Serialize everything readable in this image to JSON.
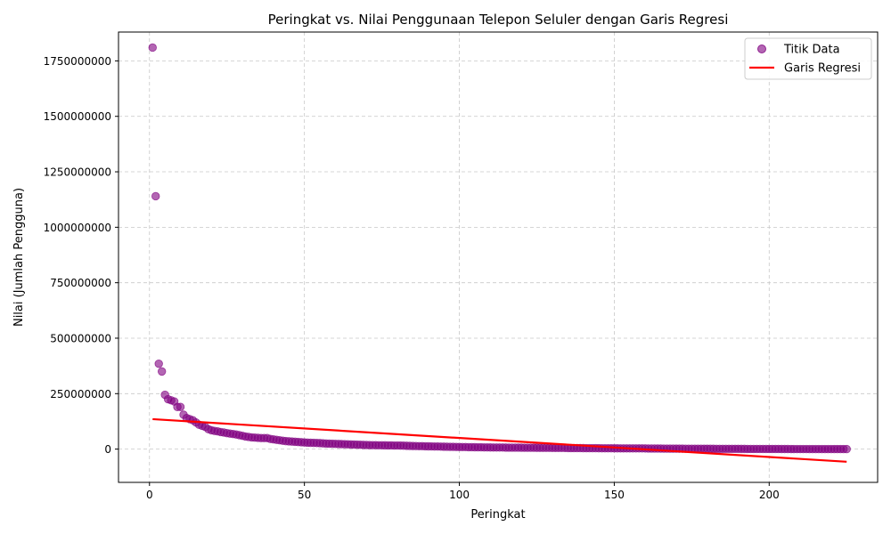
{
  "chart_data": {
    "type": "scatter",
    "title": "Peringkat vs. Nilai Penggunaan Telepon Seluler dengan Garis Regresi",
    "xlabel": "Peringkat",
    "ylabel": "Nilai (Jumlah Pengguna)",
    "xlim": [
      -10,
      235
    ],
    "ylim": [
      -150000000,
      1880000000
    ],
    "xticks": [
      0,
      50,
      100,
      150,
      200
    ],
    "yticks": [
      0,
      250000000,
      500000000,
      750000000,
      1000000000,
      1250000000,
      1500000000,
      1750000000
    ],
    "xtick_labels": [
      "0",
      "50",
      "100",
      "150",
      "200"
    ],
    "ytick_labels": [
      "0",
      "250000000",
      "500000000",
      "750000000",
      "1000000000",
      "1250000000",
      "1500000000",
      "1750000000"
    ],
    "grid": true,
    "legend_position": "top-right",
    "legend": [
      "Titik Data",
      "Garis Regresi"
    ],
    "colors": {
      "points": "#800080",
      "regression": "#ff0000",
      "grid": "#c8c8c8"
    },
    "series": [
      {
        "name": "Titik Data",
        "kind": "scatter",
        "x": [
          1,
          2,
          3,
          4,
          5,
          6,
          7,
          8,
          9,
          10,
          11,
          12,
          13,
          14,
          15,
          16,
          17,
          18,
          19,
          20,
          21,
          22,
          23,
          24,
          25,
          26,
          27,
          28,
          29,
          30,
          31,
          32,
          33,
          34,
          35,
          36,
          37,
          38,
          39,
          40,
          41,
          42,
          43,
          44,
          45,
          46,
          47,
          48,
          49,
          50,
          51,
          52,
          53,
          54,
          55,
          56,
          57,
          58,
          59,
          60,
          61,
          62,
          63,
          64,
          65,
          66,
          67,
          68,
          69,
          70,
          71,
          72,
          73,
          74,
          75,
          76,
          77,
          78,
          79,
          80,
          81,
          82,
          83,
          84,
          85,
          86,
          87,
          88,
          89,
          90,
          91,
          92,
          93,
          94,
          95,
          96,
          97,
          98,
          99,
          100,
          101,
          102,
          103,
          104,
          105,
          106,
          107,
          108,
          109,
          110,
          111,
          112,
          113,
          114,
          115,
          116,
          117,
          118,
          119,
          120,
          121,
          122,
          123,
          124,
          125,
          126,
          127,
          128,
          129,
          130,
          131,
          132,
          133,
          134,
          135,
          136,
          137,
          138,
          139,
          140,
          141,
          142,
          143,
          144,
          145,
          146,
          147,
          148,
          149,
          150,
          151,
          152,
          153,
          154,
          155,
          156,
          157,
          158,
          159,
          160,
          161,
          162,
          163,
          164,
          165,
          166,
          167,
          168,
          169,
          170,
          171,
          172,
          173,
          174,
          175,
          176,
          177,
          178,
          179,
          180,
          181,
          182,
          183,
          184,
          185,
          186,
          187,
          188,
          189,
          190,
          191,
          192,
          193,
          194,
          195,
          196,
          197,
          198,
          199,
          200,
          201,
          202,
          203,
          204,
          205,
          206,
          207,
          208,
          209,
          210,
          211,
          212,
          213,
          214,
          215,
          216,
          217,
          218,
          219,
          220,
          221,
          222,
          223,
          224,
          225
        ],
        "y": [
          1810000000,
          1140000000,
          385000000,
          350000000,
          245000000,
          225000000,
          220000000,
          215000000,
          190000000,
          190000000,
          155000000,
          140000000,
          135000000,
          130000000,
          120000000,
          110000000,
          105000000,
          100000000,
          90000000,
          85000000,
          82000000,
          80000000,
          77000000,
          75000000,
          72000000,
          70000000,
          68000000,
          66000000,
          63000000,
          60000000,
          57000000,
          55000000,
          53000000,
          52000000,
          51000000,
          50000000,
          50000000,
          50000000,
          46000000,
          44000000,
          42000000,
          40000000,
          38000000,
          36000000,
          35000000,
          34000000,
          33000000,
          32000000,
          31000000,
          30000000,
          29000000,
          28500000,
          28000000,
          27500000,
          27000000,
          26000000,
          25000000,
          24500000,
          24000000,
          23500000,
          23000000,
          22500000,
          22000000,
          21500000,
          21000000,
          20500000,
          20000000,
          19500000,
          19000000,
          18500000,
          18000000,
          17800000,
          17600000,
          17400000,
          17200000,
          17000000,
          16800000,
          16600000,
          16400000,
          16200000,
          16000000,
          15500000,
          15000000,
          14500000,
          14000000,
          13700000,
          13400000,
          13100000,
          12800000,
          12500000,
          12200000,
          11900000,
          11600000,
          11300000,
          11000000,
          10700000,
          10400000,
          10100000,
          9800000,
          9500000,
          9300000,
          9100000,
          8900000,
          8700000,
          8500000,
          8300000,
          8100000,
          7900000,
          7700000,
          7500000,
          7400000,
          7300000,
          7200000,
          7100000,
          7000000,
          6900000,
          6800000,
          6700000,
          6600000,
          6500000,
          6400000,
          6300000,
          6200000,
          6100000,
          6000000,
          5900000,
          5800000,
          5700000,
          5600000,
          5500000,
          5400000,
          5300000,
          5200000,
          5100000,
          5000000,
          4900000,
          4800000,
          4700000,
          4600000,
          4500000,
          4400000,
          4300000,
          4200000,
          4100000,
          4000000,
          3900000,
          3800000,
          3700000,
          3600000,
          3500000,
          3450000,
          3400000,
          3350000,
          3300000,
          3250000,
          3200000,
          3150000,
          3100000,
          3050000,
          3000000,
          2900000,
          2800000,
          2700000,
          2600000,
          2500000,
          2400000,
          2300000,
          2200000,
          2100000,
          2000000,
          1950000,
          1900000,
          1850000,
          1800000,
          1750000,
          1700000,
          1650000,
          1600000,
          1550000,
          1500000,
          1450000,
          1400000,
          1350000,
          1300000,
          1250000,
          1200000,
          1150000,
          1100000,
          1050000,
          1000000,
          960000,
          920000,
          880000,
          840000,
          800000,
          760000,
          720000,
          680000,
          640000,
          600000,
          570000,
          540000,
          510000,
          480000,
          450000,
          420000,
          390000,
          360000,
          330000,
          300000,
          280000,
          260000,
          240000,
          220000,
          200000,
          180000,
          160000,
          140000,
          120000,
          100000,
          90000,
          80000,
          70000,
          60000,
          50000
        ]
      },
      {
        "name": "Garis Regresi",
        "kind": "line",
        "x": [
          1,
          225
        ],
        "y": [
          135000000,
          -57000000
        ]
      }
    ]
  }
}
